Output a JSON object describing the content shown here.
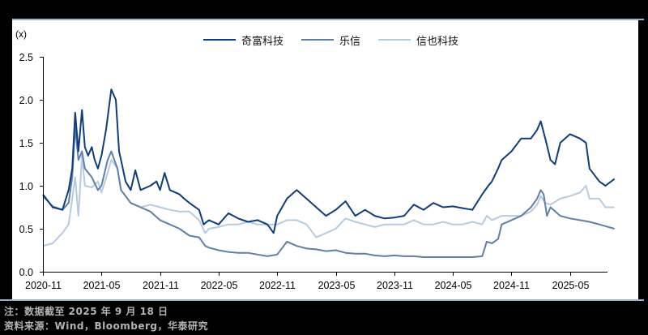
{
  "chart_data": {
    "type": "line",
    "title": "",
    "unit_label": "(x)",
    "xlabel": "",
    "ylabel": "(x)",
    "ylim": [
      0,
      2.5
    ],
    "yticks": [
      "0.0",
      "0.5",
      "1.0",
      "1.5",
      "2.0",
      "2.5"
    ],
    "xticks": [
      "2020-11",
      "2021-05",
      "2021-11",
      "2022-05",
      "2022-11",
      "2023-05",
      "2023-11",
      "2024-05",
      "2024-11",
      "2025-05"
    ],
    "x_range": [
      "2020-11",
      "2025-09-18"
    ],
    "grid": false,
    "legend_position": "top",
    "series": [
      {
        "name": "奇富科技",
        "color": "#0e3c7c",
        "points": [
          [
            "2020-11",
            0.9
          ],
          [
            "2020-12",
            0.75
          ],
          [
            "2021-01",
            0.72
          ],
          [
            "2021-01-20",
            0.95
          ],
          [
            "2021-02",
            1.2
          ],
          [
            "2021-02-10",
            1.85
          ],
          [
            "2021-02-20",
            1.4
          ],
          [
            "2021-03",
            1.88
          ],
          [
            "2021-03-10",
            1.45
          ],
          [
            "2021-03-20",
            1.35
          ],
          [
            "2021-04",
            1.45
          ],
          [
            "2021-04-10",
            1.3
          ],
          [
            "2021-04-20",
            1.2
          ],
          [
            "2021-05",
            1.35
          ],
          [
            "2021-05-15",
            1.65
          ],
          [
            "2021-06",
            2.12
          ],
          [
            "2021-06-15",
            2.0
          ],
          [
            "2021-06-25",
            1.4
          ],
          [
            "2021-07",
            1.3
          ],
          [
            "2021-07-15",
            1.05
          ],
          [
            "2021-08",
            0.95
          ],
          [
            "2021-08-15",
            1.18
          ],
          [
            "2021-09",
            0.95
          ],
          [
            "2021-10",
            1.0
          ],
          [
            "2021-10-20",
            1.05
          ],
          [
            "2021-11",
            0.95
          ],
          [
            "2021-11-15",
            1.15
          ],
          [
            "2021-12",
            0.95
          ],
          [
            "2022-01",
            0.9
          ],
          [
            "2022-01-15",
            0.85
          ],
          [
            "2022-02",
            0.8
          ],
          [
            "2022-03",
            0.72
          ],
          [
            "2022-03-15",
            0.55
          ],
          [
            "2022-04",
            0.6
          ],
          [
            "2022-05",
            0.55
          ],
          [
            "2022-06",
            0.68
          ],
          [
            "2022-07",
            0.62
          ],
          [
            "2022-08",
            0.58
          ],
          [
            "2022-09",
            0.6
          ],
          [
            "2022-10",
            0.55
          ],
          [
            "2022-10-20",
            0.45
          ],
          [
            "2022-11",
            0.65
          ],
          [
            "2022-12",
            0.85
          ],
          [
            "2023-01",
            0.95
          ],
          [
            "2023-02",
            0.85
          ],
          [
            "2023-03",
            0.75
          ],
          [
            "2023-04",
            0.65
          ],
          [
            "2023-05",
            0.72
          ],
          [
            "2023-06",
            0.82
          ],
          [
            "2023-07",
            0.65
          ],
          [
            "2023-08",
            0.72
          ],
          [
            "2023-09",
            0.65
          ],
          [
            "2023-10",
            0.62
          ],
          [
            "2023-11",
            0.63
          ],
          [
            "2023-12",
            0.65
          ],
          [
            "2024-01",
            0.78
          ],
          [
            "2024-02",
            0.72
          ],
          [
            "2024-03",
            0.8
          ],
          [
            "2024-04",
            0.75
          ],
          [
            "2024-05",
            0.76
          ],
          [
            "2024-06",
            0.74
          ],
          [
            "2024-07",
            0.72
          ],
          [
            "2024-08",
            0.9
          ],
          [
            "2024-08-20",
            1.0
          ],
          [
            "2024-09",
            1.05
          ],
          [
            "2024-09-20",
            1.2
          ],
          [
            "2024-10",
            1.3
          ],
          [
            "2024-11",
            1.4
          ],
          [
            "2024-12",
            1.55
          ],
          [
            "2025-01",
            1.55
          ],
          [
            "2025-01-20",
            1.65
          ],
          [
            "2025-02",
            1.75
          ],
          [
            "2025-02-15",
            1.55
          ],
          [
            "2025-03",
            1.3
          ],
          [
            "2025-03-15",
            1.25
          ],
          [
            "2025-04",
            1.5
          ],
          [
            "2025-05",
            1.6
          ],
          [
            "2025-06",
            1.55
          ],
          [
            "2025-06-20",
            1.5
          ],
          [
            "2025-07",
            1.2
          ],
          [
            "2025-08",
            1.05
          ],
          [
            "2025-08-20",
            1.0
          ],
          [
            "2025-09-18",
            1.08
          ]
        ]
      },
      {
        "name": "乐信",
        "color": "#5f7fa8",
        "points": [
          [
            "2020-11",
            0.88
          ],
          [
            "2020-12",
            0.76
          ],
          [
            "2021-01",
            0.72
          ],
          [
            "2021-01-20",
            0.8
          ],
          [
            "2021-02",
            1.1
          ],
          [
            "2021-02-10",
            1.68
          ],
          [
            "2021-02-20",
            1.3
          ],
          [
            "2021-03",
            1.4
          ],
          [
            "2021-03-10",
            1.2
          ],
          [
            "2021-04",
            1.1
          ],
          [
            "2021-04-20",
            0.95
          ],
          [
            "2021-05",
            1.0
          ],
          [
            "2021-05-20",
            1.3
          ],
          [
            "2021-06",
            1.4
          ],
          [
            "2021-06-20",
            1.2
          ],
          [
            "2021-07",
            0.95
          ],
          [
            "2021-08",
            0.8
          ],
          [
            "2021-09",
            0.75
          ],
          [
            "2021-10",
            0.7
          ],
          [
            "2021-11",
            0.6
          ],
          [
            "2021-12",
            0.55
          ],
          [
            "2022-01",
            0.5
          ],
          [
            "2022-02",
            0.42
          ],
          [
            "2022-03",
            0.4
          ],
          [
            "2022-03-20",
            0.3
          ],
          [
            "2022-04",
            0.28
          ],
          [
            "2022-05",
            0.25
          ],
          [
            "2022-06",
            0.23
          ],
          [
            "2022-07",
            0.22
          ],
          [
            "2022-08",
            0.22
          ],
          [
            "2022-09",
            0.2
          ],
          [
            "2022-10",
            0.18
          ],
          [
            "2022-11",
            0.2
          ],
          [
            "2022-12",
            0.35
          ],
          [
            "2023-01",
            0.3
          ],
          [
            "2023-02",
            0.27
          ],
          [
            "2023-03",
            0.26
          ],
          [
            "2023-04",
            0.24
          ],
          [
            "2023-05",
            0.25
          ],
          [
            "2023-06",
            0.22
          ],
          [
            "2023-07",
            0.21
          ],
          [
            "2023-08",
            0.21
          ],
          [
            "2023-09",
            0.19
          ],
          [
            "2023-10",
            0.18
          ],
          [
            "2023-11",
            0.19
          ],
          [
            "2023-12",
            0.18
          ],
          [
            "2024-01",
            0.18
          ],
          [
            "2024-02",
            0.17
          ],
          [
            "2024-03",
            0.17
          ],
          [
            "2024-04",
            0.17
          ],
          [
            "2024-05",
            0.17
          ],
          [
            "2024-06",
            0.17
          ],
          [
            "2024-07",
            0.17
          ],
          [
            "2024-08",
            0.18
          ],
          [
            "2024-08-15",
            0.35
          ],
          [
            "2024-09",
            0.33
          ],
          [
            "2024-09-20",
            0.38
          ],
          [
            "2024-10",
            0.55
          ],
          [
            "2024-11",
            0.6
          ],
          [
            "2024-12",
            0.65
          ],
          [
            "2025-01",
            0.75
          ],
          [
            "2025-01-20",
            0.85
          ],
          [
            "2025-02",
            0.95
          ],
          [
            "2025-02-10",
            0.9
          ],
          [
            "2025-02-20",
            0.65
          ],
          [
            "2025-03",
            0.75
          ],
          [
            "2025-04",
            0.65
          ],
          [
            "2025-05",
            0.62
          ],
          [
            "2025-06",
            0.6
          ],
          [
            "2025-07",
            0.58
          ],
          [
            "2025-08",
            0.55
          ],
          [
            "2025-09-18",
            0.5
          ]
        ]
      },
      {
        "name": "信也科技",
        "color": "#b6cbe2",
        "points": [
          [
            "2020-11",
            0.3
          ],
          [
            "2020-12",
            0.33
          ],
          [
            "2021-01",
            0.45
          ],
          [
            "2021-01-20",
            0.55
          ],
          [
            "2021-02",
            0.85
          ],
          [
            "2021-02-10",
            1.1
          ],
          [
            "2021-02-20",
            0.65
          ],
          [
            "2021-03",
            1.35
          ],
          [
            "2021-03-10",
            1.0
          ],
          [
            "2021-04",
            0.98
          ],
          [
            "2021-04-20",
            1.05
          ],
          [
            "2021-05",
            0.92
          ],
          [
            "2021-05-20",
            1.15
          ],
          [
            "2021-06",
            1.3
          ],
          [
            "2021-06-20",
            1.2
          ],
          [
            "2021-07",
            0.95
          ],
          [
            "2021-08",
            0.8
          ],
          [
            "2021-09",
            0.75
          ],
          [
            "2021-10",
            0.78
          ],
          [
            "2021-11",
            0.75
          ],
          [
            "2021-12",
            0.72
          ],
          [
            "2022-01",
            0.7
          ],
          [
            "2022-02",
            0.7
          ],
          [
            "2022-03",
            0.6
          ],
          [
            "2022-03-20",
            0.45
          ],
          [
            "2022-04",
            0.5
          ],
          [
            "2022-05",
            0.52
          ],
          [
            "2022-06",
            0.55
          ],
          [
            "2022-07",
            0.55
          ],
          [
            "2022-08",
            0.58
          ],
          [
            "2022-09",
            0.55
          ],
          [
            "2022-10",
            0.55
          ],
          [
            "2022-11",
            0.55
          ],
          [
            "2022-12",
            0.6
          ],
          [
            "2023-01",
            0.6
          ],
          [
            "2023-02",
            0.55
          ],
          [
            "2023-03",
            0.4
          ],
          [
            "2023-04",
            0.45
          ],
          [
            "2023-05",
            0.5
          ],
          [
            "2023-06",
            0.62
          ],
          [
            "2023-07",
            0.58
          ],
          [
            "2023-08",
            0.55
          ],
          [
            "2023-09",
            0.52
          ],
          [
            "2023-10",
            0.55
          ],
          [
            "2023-11",
            0.55
          ],
          [
            "2023-12",
            0.55
          ],
          [
            "2024-01",
            0.6
          ],
          [
            "2024-02",
            0.55
          ],
          [
            "2024-03",
            0.55
          ],
          [
            "2024-04",
            0.58
          ],
          [
            "2024-05",
            0.55
          ],
          [
            "2024-06",
            0.55
          ],
          [
            "2024-07",
            0.58
          ],
          [
            "2024-08",
            0.55
          ],
          [
            "2024-08-15",
            0.65
          ],
          [
            "2024-09",
            0.6
          ],
          [
            "2024-10",
            0.65
          ],
          [
            "2024-11",
            0.65
          ],
          [
            "2024-12",
            0.65
          ],
          [
            "2025-01",
            0.7
          ],
          [
            "2025-01-20",
            0.78
          ],
          [
            "2025-02",
            0.88
          ],
          [
            "2025-02-15",
            0.8
          ],
          [
            "2025-03",
            0.78
          ],
          [
            "2025-04",
            0.85
          ],
          [
            "2025-05",
            0.88
          ],
          [
            "2025-06",
            0.92
          ],
          [
            "2025-06-20",
            1.0
          ],
          [
            "2025-07",
            0.85
          ],
          [
            "2025-08",
            0.85
          ],
          [
            "2025-08-20",
            0.75
          ],
          [
            "2025-09-18",
            0.75
          ]
        ]
      }
    ]
  },
  "chart": {
    "unit_label": "(x)",
    "legend": [
      {
        "label": "奇富科技",
        "color": "#0e3c7c"
      },
      {
        "label": "乐信",
        "color": "#5f7fa8"
      },
      {
        "label": "信也科技",
        "color": "#b6cbe2"
      }
    ]
  },
  "footer": {
    "note": "注：数据截至 2025 年 9 月 18 日",
    "source": "资料来源：Wind，Bloomberg，华泰研究"
  }
}
